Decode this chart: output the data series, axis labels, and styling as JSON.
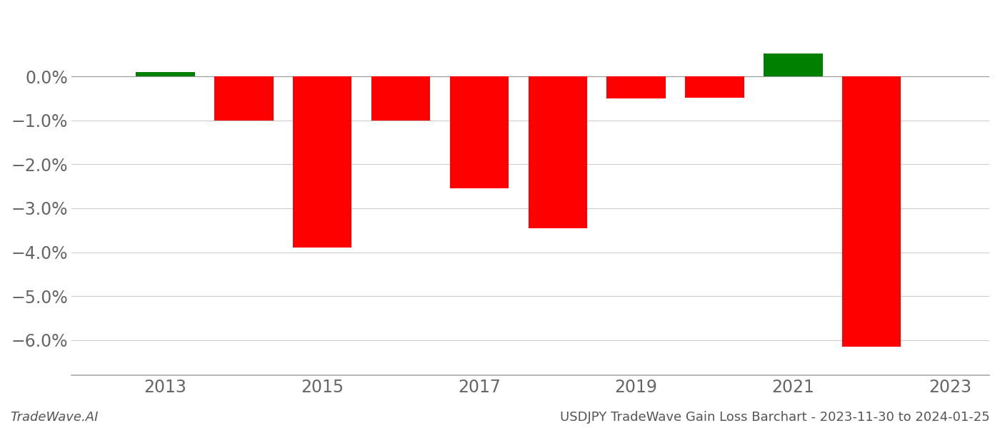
{
  "years": [
    2013,
    2014,
    2015,
    2016,
    2017,
    2018,
    2019,
    2020,
    2021,
    2022
  ],
  "values": [
    0.001,
    -0.01,
    -0.039,
    -0.01,
    -0.0255,
    -0.0345,
    -0.005,
    -0.0048,
    0.0052,
    -0.0615
  ],
  "bar_colors": [
    "#008000",
    "#ff0000",
    "#ff0000",
    "#ff0000",
    "#ff0000",
    "#ff0000",
    "#ff0000",
    "#ff0000",
    "#008000",
    "#ff0000"
  ],
  "ylim": [
    -0.068,
    0.013
  ],
  "yticks": [
    0.0,
    -0.01,
    -0.02,
    -0.03,
    -0.04,
    -0.05,
    -0.06
  ],
  "background_color": "#ffffff",
  "grid_color": "#cccccc",
  "bar_width": 0.75,
  "xticks": [
    2013,
    2015,
    2017,
    2019,
    2021,
    2023
  ],
  "xtick_fontsize": 17,
  "ytick_fontsize": 17,
  "footer_left": "TradeWave.AI",
  "footer_right": "USDJPY TradeWave Gain Loss Barchart - 2023-11-30 to 2024-01-25",
  "footer_fontsize": 13,
  "spine_color": "#aaaaaa",
  "zero_line_color": "#999999"
}
